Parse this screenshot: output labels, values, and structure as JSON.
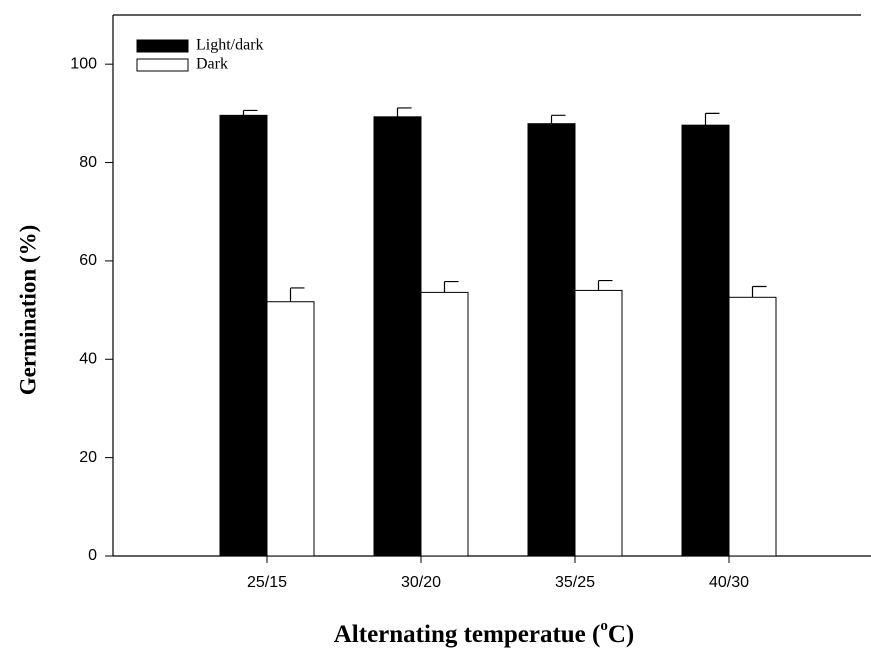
{
  "chart_data": {
    "type": "bar",
    "ylabel": "Germination (%)",
    "xlabel": {
      "text": "Alternating temperatue (",
      "superscript": "o",
      "suffix": "C)"
    },
    "categories": [
      "25/15",
      "30/20",
      "35/25",
      "40/30"
    ],
    "series": [
      {
        "name": "Light/dark",
        "color": "#000000",
        "values": [
          89.6,
          89.3,
          87.9,
          87.6
        ],
        "errors": [
          1.0,
          1.8,
          1.7,
          2.4
        ]
      },
      {
        "name": "Dark",
        "color": "#ffffff",
        "values": [
          51.7,
          53.6,
          54.0,
          52.6
        ],
        "errors": [
          2.8,
          2.2,
          2.0,
          2.2
        ]
      }
    ],
    "ylim": [
      0,
      110
    ],
    "yticks": [
      0,
      20,
      40,
      60,
      80,
      100
    ],
    "legend": "upper left",
    "grid": false
  }
}
